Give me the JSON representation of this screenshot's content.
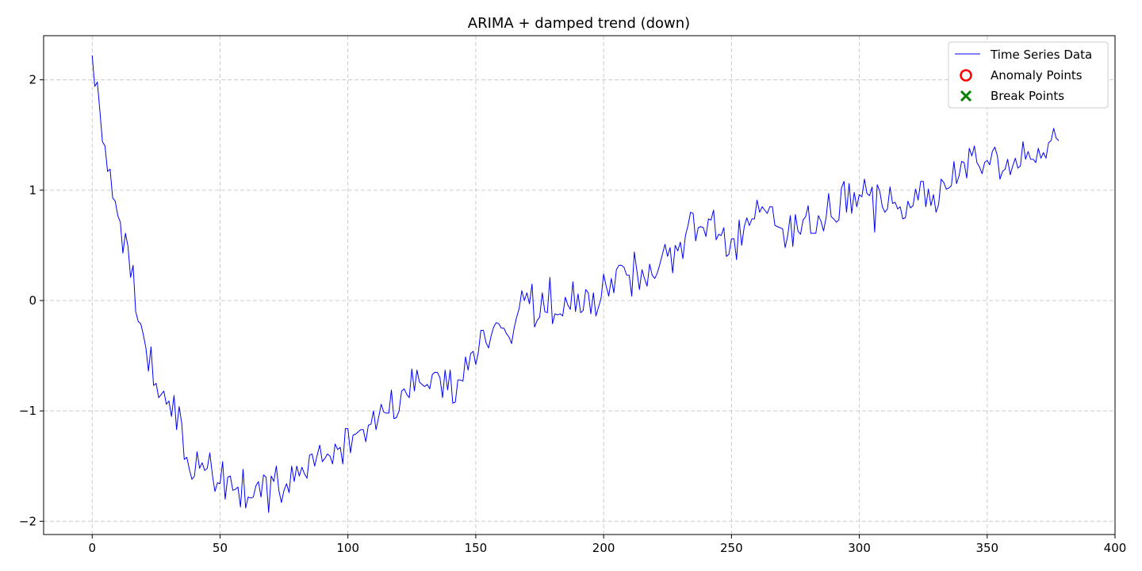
{
  "chart_data": {
    "type": "line",
    "title": "ARIMA + damped trend (down)",
    "xlabel": "",
    "ylabel": "",
    "xlim": [
      -19,
      400
    ],
    "ylim": [
      -2.12,
      2.4
    ],
    "x_ticks": [
      0,
      50,
      100,
      150,
      200,
      250,
      300,
      350,
      400
    ],
    "y_ticks": [
      -2,
      -1,
      0,
      1,
      2
    ],
    "x_tick_labels": [
      "0",
      "50",
      "100",
      "150",
      "200",
      "250",
      "300",
      "350",
      "400"
    ],
    "y_tick_labels": [
      "−2",
      "−1",
      "0",
      "1",
      "2"
    ],
    "grid": true,
    "legend_position": "top-right",
    "legend": [
      {
        "label": "Time Series Data",
        "marker": "line",
        "color": "#0000ff"
      },
      {
        "label": "Anomaly Points",
        "marker": "circle-open",
        "color": "#ff0000"
      },
      {
        "label": "Break Points",
        "marker": "x",
        "color": "#008000"
      }
    ],
    "series": [
      {
        "name": "Time Series Data",
        "color": "#0000ff",
        "x_start": 0,
        "x_step": 1,
        "values": [
          2.22,
          1.94,
          1.98,
          1.72,
          1.44,
          1.4,
          1.17,
          1.19,
          0.93,
          0.9,
          0.77,
          0.71,
          0.43,
          0.61,
          0.49,
          0.21,
          0.32,
          -0.1,
          -0.19,
          -0.21,
          -0.31,
          -0.43,
          -0.64,
          -0.42,
          -0.77,
          -0.75,
          -0.88,
          -0.85,
          -0.82,
          -0.94,
          -0.91,
          -1.05,
          -0.86,
          -1.17,
          -0.96,
          -1.11,
          -1.44,
          -1.42,
          -1.53,
          -1.62,
          -1.59,
          -1.37,
          -1.52,
          -1.47,
          -1.54,
          -1.52,
          -1.38,
          -1.58,
          -1.73,
          -1.65,
          -1.66,
          -1.46,
          -1.8,
          -1.6,
          -1.59,
          -1.72,
          -1.71,
          -1.69,
          -1.87,
          -1.53,
          -1.88,
          -1.78,
          -1.79,
          -1.78,
          -1.68,
          -1.64,
          -1.78,
          -1.58,
          -1.6,
          -1.92,
          -1.59,
          -1.64,
          -1.5,
          -1.72,
          -1.83,
          -1.72,
          -1.66,
          -1.74,
          -1.5,
          -1.64,
          -1.5,
          -1.59,
          -1.51,
          -1.57,
          -1.61,
          -1.4,
          -1.39,
          -1.5,
          -1.4,
          -1.31,
          -1.46,
          -1.43,
          -1.39,
          -1.41,
          -1.48,
          -1.3,
          -1.35,
          -1.33,
          -1.48,
          -1.16,
          -1.16,
          -1.38,
          -1.22,
          -1.21,
          -1.19,
          -1.17,
          -1.17,
          -1.28,
          -1.13,
          -1.12,
          -1.0,
          -1.17,
          -1.06,
          -0.94,
          -1.01,
          -1.02,
          -1.02,
          -0.81,
          -1.07,
          -1.06,
          -1.0,
          -0.82,
          -0.8,
          -0.85,
          -0.88,
          -0.62,
          -0.82,
          -0.63,
          -0.74,
          -0.76,
          -0.78,
          -0.76,
          -0.8,
          -0.67,
          -0.65,
          -0.65,
          -0.7,
          -0.88,
          -0.63,
          -0.81,
          -0.63,
          -0.93,
          -0.92,
          -0.72,
          -0.72,
          -0.73,
          -0.51,
          -0.63,
          -0.48,
          -0.46,
          -0.58,
          -0.47,
          -0.27,
          -0.27,
          -0.38,
          -0.43,
          -0.32,
          -0.24,
          -0.2,
          -0.21,
          -0.25,
          -0.25,
          -0.3,
          -0.33,
          -0.39,
          -0.25,
          -0.15,
          -0.07,
          0.09,
          0.0,
          0.07,
          -0.03,
          0.15,
          -0.24,
          -0.18,
          -0.15,
          0.07,
          -0.1,
          -0.11,
          0.21,
          -0.21,
          -0.12,
          -0.13,
          -0.12,
          -0.14,
          0.03,
          -0.04,
          -0.08,
          0.17,
          -0.1,
          0.06,
          -0.11,
          -0.09,
          0.1,
          0.07,
          -0.12,
          0.07,
          -0.14,
          -0.06,
          0.02,
          0.24,
          0.13,
          0.04,
          0.2,
          0.07,
          0.28,
          0.32,
          0.32,
          0.3,
          0.23,
          0.23,
          0.04,
          0.44,
          0.27,
          0.1,
          0.28,
          0.2,
          0.13,
          0.33,
          0.23,
          0.2,
          0.25,
          0.33,
          0.42,
          0.51,
          0.4,
          0.48,
          0.25,
          0.5,
          0.45,
          0.53,
          0.38,
          0.59,
          0.68,
          0.8,
          0.79,
          0.54,
          0.66,
          0.67,
          0.66,
          0.58,
          0.74,
          0.73,
          0.82,
          0.55,
          0.6,
          0.59,
          0.66,
          0.4,
          0.42,
          0.56,
          0.56,
          0.37,
          0.73,
          0.5,
          0.67,
          0.75,
          0.68,
          0.74,
          0.74,
          0.91,
          0.8,
          0.85,
          0.82,
          0.79,
          0.85,
          0.85,
          0.68,
          0.67,
          0.66,
          0.65,
          0.48,
          0.59,
          0.77,
          0.49,
          0.78,
          0.63,
          0.6,
          0.73,
          0.76,
          0.86,
          0.61,
          0.61,
          0.61,
          0.77,
          0.72,
          0.63,
          0.75,
          0.97,
          0.76,
          0.74,
          0.71,
          0.73,
          1.02,
          1.08,
          0.8,
          1.06,
          0.79,
          0.98,
          0.85,
          0.96,
          0.94,
          1.1,
          0.97,
          0.95,
          1.03,
          0.62,
          1.05,
          0.99,
          0.85,
          0.8,
          0.83,
          1.03,
          0.88,
          0.89,
          0.83,
          0.85,
          0.74,
          0.75,
          0.9,
          0.84,
          0.86,
          1.01,
          0.91,
          1.08,
          1.08,
          0.85,
          1.01,
          0.86,
          0.96,
          0.8,
          0.87,
          1.1,
          1.07,
          1.01,
          1.02,
          1.04,
          1.26,
          1.06,
          1.13,
          1.26,
          1.25,
          1.11,
          1.38,
          1.31,
          1.4,
          1.25,
          1.21,
          1.15,
          1.25,
          1.27,
          1.23,
          1.35,
          1.39,
          1.31,
          1.1,
          1.17,
          1.19,
          1.28,
          1.14,
          1.22,
          1.29,
          1.2,
          1.22,
          1.44,
          1.28,
          1.35,
          1.28,
          1.28,
          1.25,
          1.38,
          1.29,
          1.34,
          1.29,
          1.43,
          1.45,
          1.56,
          1.47,
          1.45
        ]
      }
    ]
  }
}
